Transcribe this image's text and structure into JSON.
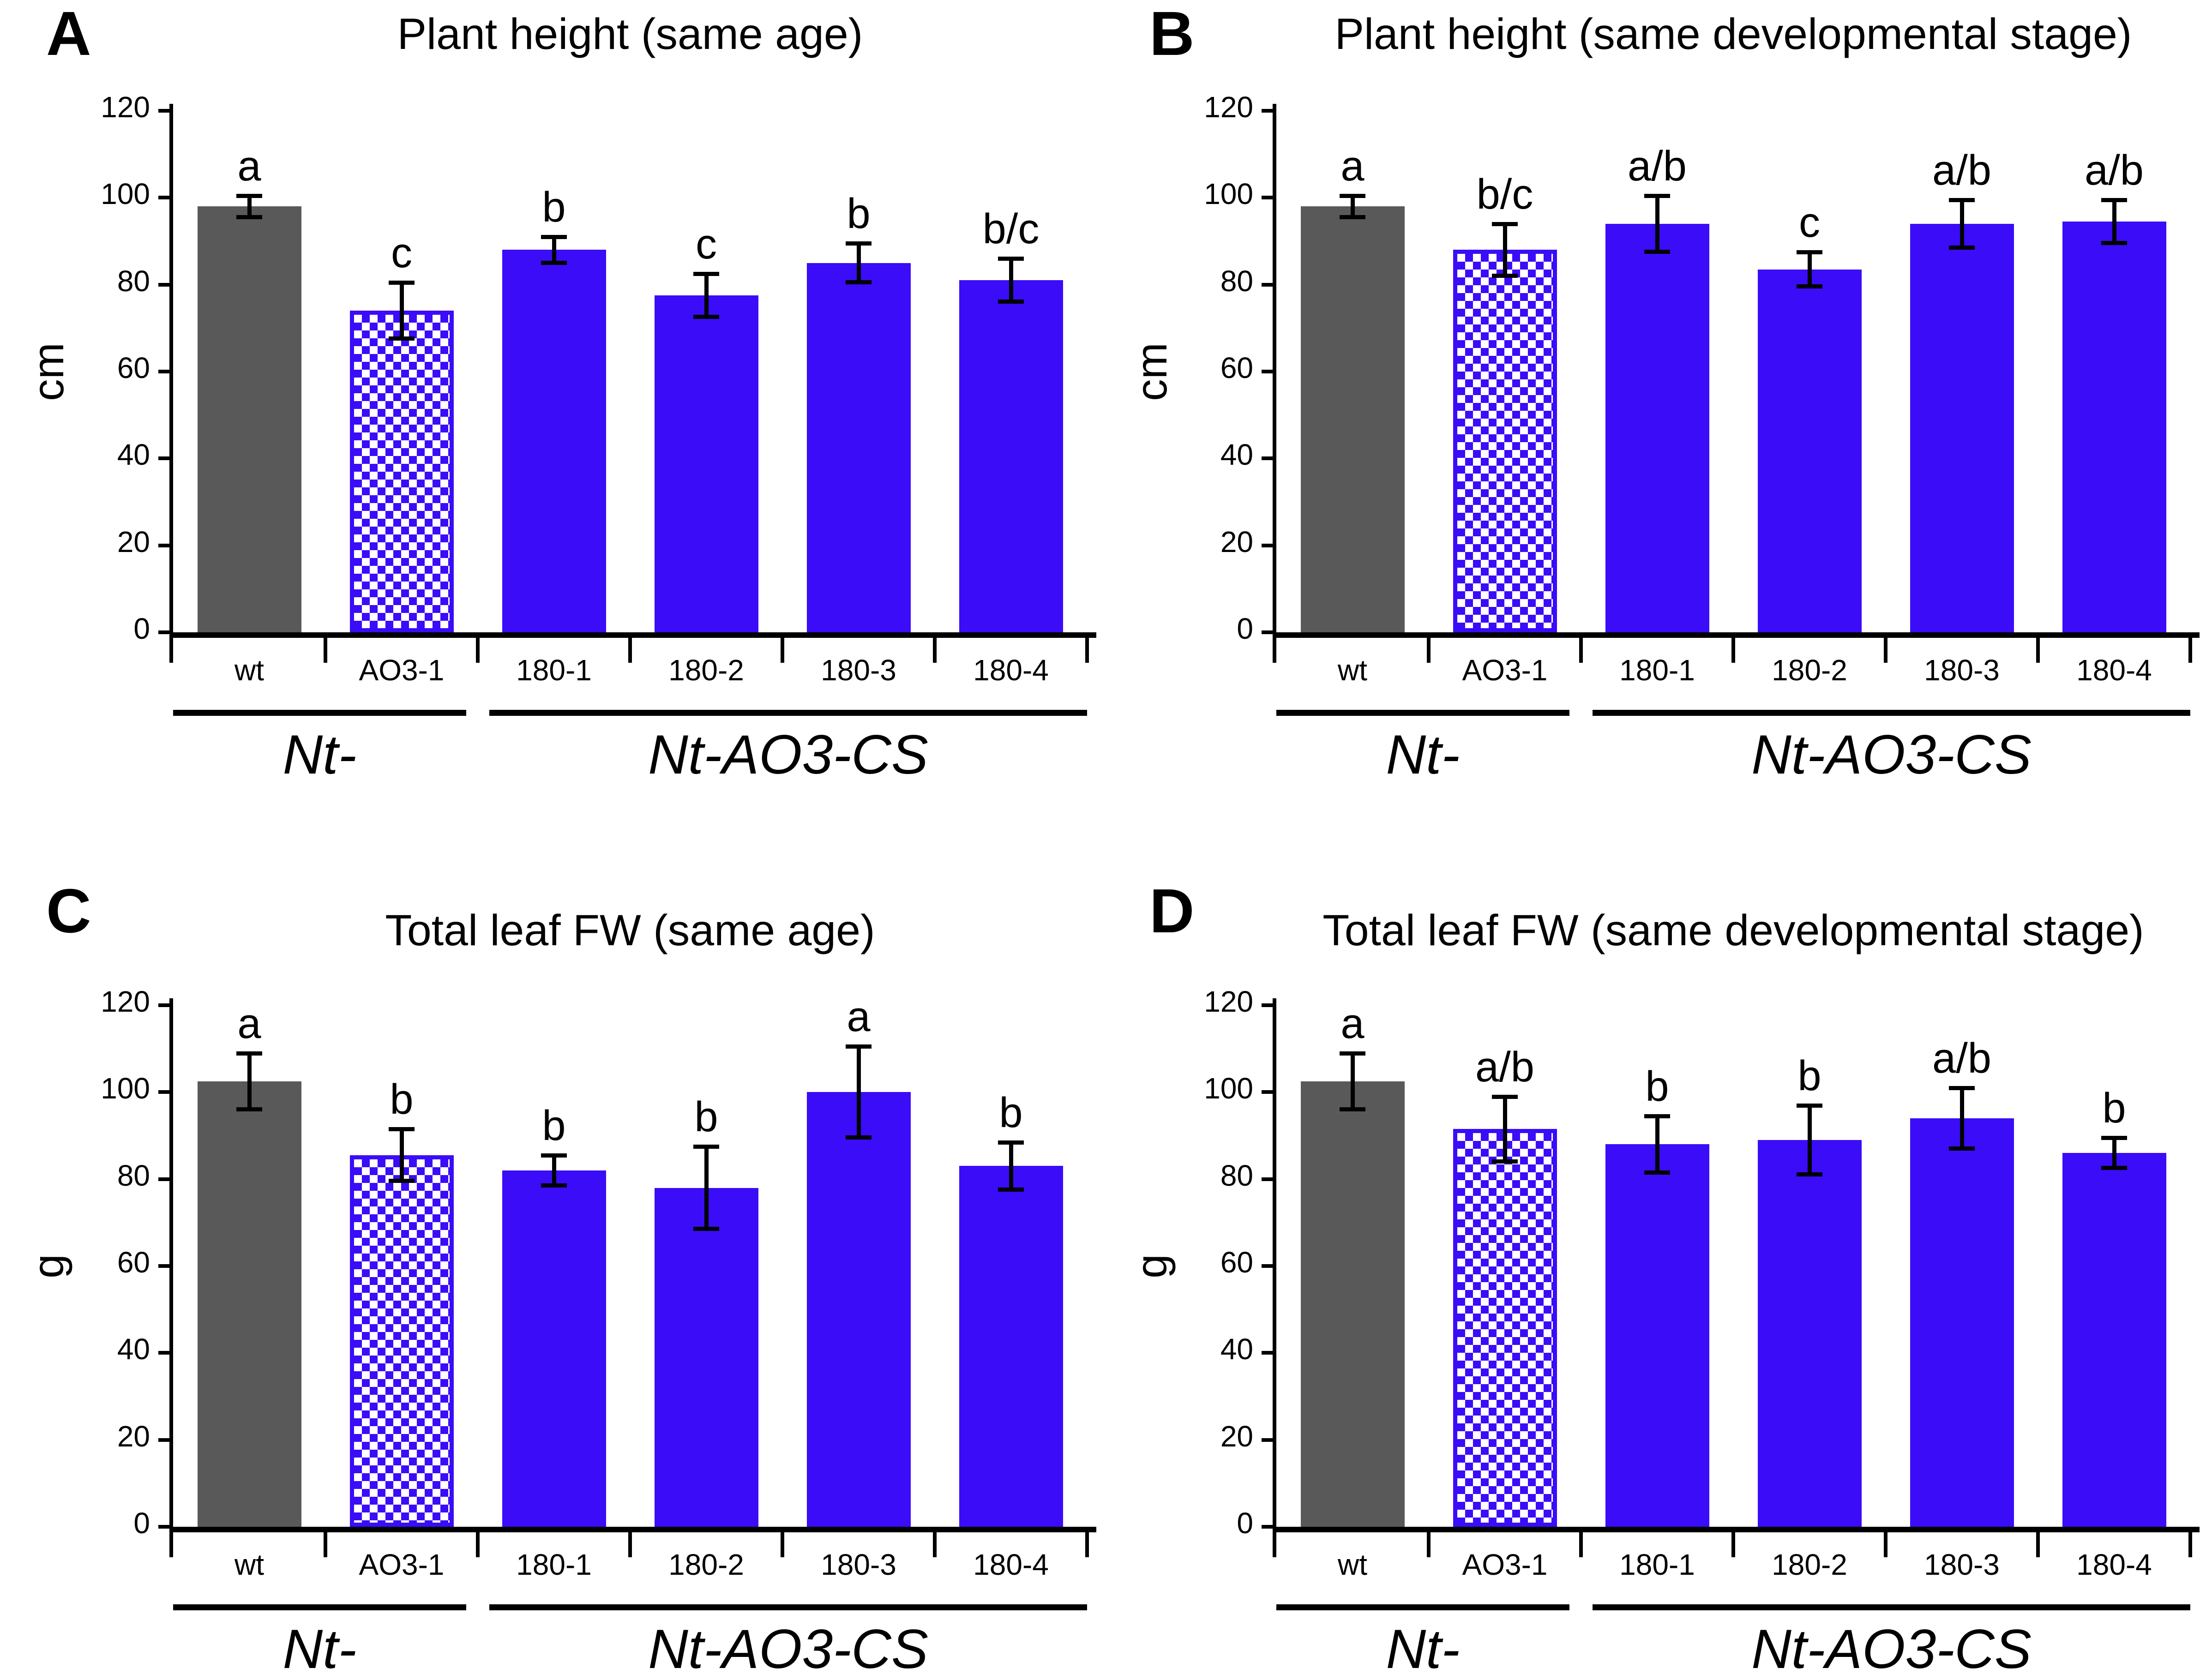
{
  "figure": {
    "background": "#ffffff"
  },
  "colors": {
    "bar_gray": "#595959",
    "bar_blue": "#3a0cf8",
    "axis": "#000000",
    "error_bar": "#000000",
    "text": "#000000"
  },
  "chart_data": [
    {
      "type": "bar",
      "panel": "A",
      "title": "Plant height (same age)",
      "xlabel": "",
      "ylabel": "cm",
      "ylim": [
        0,
        120
      ],
      "ytick_step": 20,
      "grid": false,
      "legend": "none",
      "categories": [
        "wt",
        "AO3-1",
        "180-1",
        "180-2",
        "180-3",
        "180-4"
      ],
      "values": [
        98,
        74,
        88,
        77.5,
        85,
        81
      ],
      "errors": [
        2.5,
        6.5,
        3,
        5,
        4.5,
        5
      ],
      "sig_letters": [
        "a",
        "c",
        "b",
        "c",
        "b",
        "b/c"
      ],
      "bar_styles": [
        "solid-gray",
        "checker-blue",
        "solid-blue",
        "solid-blue",
        "solid-blue",
        "solid-blue"
      ],
      "groups": [
        {
          "label": "Nt-",
          "from": 0,
          "to": 1
        },
        {
          "label": "Nt-AO3-CS",
          "from": 2,
          "to": 5
        }
      ]
    },
    {
      "type": "bar",
      "panel": "B",
      "title": "Plant height (same developmental stage)",
      "xlabel": "",
      "ylabel": "cm",
      "ylim": [
        0,
        120
      ],
      "ytick_step": 20,
      "grid": false,
      "legend": "none",
      "categories": [
        "wt",
        "AO3-1",
        "180-1",
        "180-2",
        "180-3",
        "180-4"
      ],
      "values": [
        98,
        88,
        94,
        83.5,
        94,
        94.5
      ],
      "errors": [
        2.5,
        6,
        6.5,
        4,
        5.5,
        5
      ],
      "sig_letters": [
        "a",
        "b/c",
        "a/b",
        "c",
        "a/b",
        "a/b"
      ],
      "bar_styles": [
        "solid-gray",
        "checker-blue",
        "solid-blue",
        "solid-blue",
        "solid-blue",
        "solid-blue"
      ],
      "groups": [
        {
          "label": "Nt-",
          "from": 0,
          "to": 1
        },
        {
          "label": "Nt-AO3-CS",
          "from": 2,
          "to": 5
        }
      ]
    },
    {
      "type": "bar",
      "panel": "C",
      "title": "Total leaf FW (same age)",
      "xlabel": "",
      "ylabel": "g",
      "ylim": [
        0,
        120
      ],
      "ytick_step": 20,
      "grid": false,
      "legend": "none",
      "categories": [
        "wt",
        "AO3-1",
        "180-1",
        "180-2",
        "180-3",
        "180-4"
      ],
      "values": [
        102.5,
        85.5,
        82,
        78,
        100,
        83
      ],
      "errors": [
        6.5,
        6,
        3.5,
        9.5,
        10.5,
        5.5
      ],
      "sig_letters": [
        "a",
        "b",
        "b",
        "b",
        "a",
        "b"
      ],
      "bar_styles": [
        "solid-gray",
        "checker-blue",
        "solid-blue",
        "solid-blue",
        "solid-blue",
        "solid-blue"
      ],
      "groups": [
        {
          "label": "Nt-",
          "from": 0,
          "to": 1
        },
        {
          "label": "Nt-AO3-CS",
          "from": 2,
          "to": 5
        }
      ]
    },
    {
      "type": "bar",
      "panel": "D",
      "title": "Total leaf FW (same developmental stage)",
      "xlabel": "",
      "ylabel": "g",
      "ylim": [
        0,
        120
      ],
      "ytick_step": 20,
      "grid": false,
      "legend": "none",
      "categories": [
        "wt",
        "AO3-1",
        "180-1",
        "180-2",
        "180-3",
        "180-4"
      ],
      "values": [
        102.5,
        91.5,
        88,
        89,
        94,
        86
      ],
      "errors": [
        6.5,
        7.5,
        6.5,
        8,
        7,
        3.5
      ],
      "sig_letters": [
        "a",
        "a/b",
        "b",
        "b",
        "a/b",
        "b"
      ],
      "bar_styles": [
        "solid-gray",
        "checker-blue",
        "solid-blue",
        "solid-blue",
        "solid-blue",
        "solid-blue"
      ],
      "groups": [
        {
          "label": "Nt-",
          "from": 0,
          "to": 1
        },
        {
          "label": "Nt-AO3-CS",
          "from": 2,
          "to": 5
        }
      ]
    }
  ]
}
